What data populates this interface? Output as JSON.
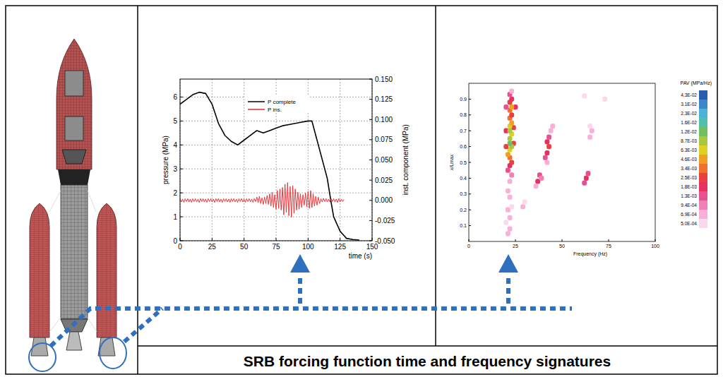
{
  "caption": "SRB forcing function time and frequency signatures",
  "chart_data": [
    {
      "type": "line",
      "xlabel": "time (s)",
      "ylabel": "pressure (MPa)",
      "y2label": "inst. component (MPa)",
      "xlim": [
        0,
        150
      ],
      "xticks": [
        0,
        25,
        50,
        75,
        100,
        125,
        150
      ],
      "ylim": [
        0,
        6.75
      ],
      "yticks": [
        0,
        1,
        2,
        3,
        4,
        5,
        6
      ],
      "y2lim": [
        -0.05,
        0.15
      ],
      "y2ticks": [
        {
          "value": -0.05,
          "label": "-0.050"
        },
        {
          "value": -0.025,
          "label": "-0.025"
        },
        {
          "value": 0,
          "label": "0.000"
        },
        {
          "value": 0.025,
          "label": "0.025"
        },
        {
          "value": 0.05,
          "label": "0.050"
        },
        {
          "value": 0.075,
          "label": "0.075"
        },
        {
          "value": 0.1,
          "label": "0.100"
        },
        {
          "value": 0.125,
          "label": "0.125"
        },
        {
          "value": 0.15,
          "label": "0.150"
        }
      ],
      "grid": true,
      "legend": "upper center",
      "series": [
        {
          "name": "P complete",
          "color": "#000000",
          "x": [
            0,
            5,
            10,
            15,
            20,
            25,
            30,
            35,
            40,
            45,
            50,
            55,
            60,
            65,
            70,
            75,
            80,
            85,
            90,
            95,
            100,
            103,
            105,
            110,
            115,
            118,
            120,
            125,
            130,
            135,
            140
          ],
          "values": [
            5.7,
            5.9,
            6.1,
            6.2,
            6.15,
            5.7,
            4.9,
            4.4,
            4.15,
            4.0,
            4.2,
            4.4,
            4.6,
            4.5,
            4.6,
            4.7,
            4.8,
            4.85,
            4.9,
            4.95,
            5.0,
            5.0,
            4.6,
            3.6,
            2.6,
            1.6,
            1.0,
            0.4,
            0.1,
            0.05,
            0.03
          ]
        },
        {
          "name": "P ins.",
          "color": "#e8262a",
          "axis": "y2",
          "x": [
            0,
            1,
            2,
            3,
            4,
            5,
            6,
            7,
            8,
            9,
            10,
            11,
            12,
            13,
            14,
            15,
            16,
            17,
            18,
            19,
            20,
            21,
            22,
            23,
            24,
            25,
            26,
            27,
            28,
            29,
            30,
            31,
            32,
            33,
            34,
            35,
            36,
            37,
            38,
            39,
            40,
            41,
            42,
            43,
            44,
            45,
            46,
            47,
            48,
            49,
            50,
            51,
            52,
            53,
            54,
            55,
            56,
            57,
            58,
            59,
            60,
            61,
            62,
            63,
            64,
            65,
            66,
            67,
            68,
            69,
            70,
            71,
            72,
            73,
            74,
            75,
            76,
            77,
            78,
            79,
            80,
            81,
            82,
            83,
            84,
            85,
            86,
            87,
            88,
            89,
            90,
            91,
            92,
            93,
            94,
            95,
            96,
            97,
            98,
            99,
            100,
            101,
            102,
            103,
            104,
            105,
            106,
            107,
            108,
            109,
            110,
            111,
            112,
            113,
            114,
            115,
            116,
            117,
            118,
            119,
            120,
            121,
            122,
            123,
            124,
            125,
            126,
            127,
            128
          ],
          "values": [
            0.002,
            -0.002,
            0.0015,
            -0.0025,
            0.002,
            -0.0015,
            0.002,
            -0.002,
            0.0015,
            -0.0025,
            0.002,
            -0.0015,
            0.002,
            -0.002,
            0.0015,
            -0.0025,
            0.002,
            -0.0015,
            0.002,
            -0.002,
            0.0015,
            -0.0025,
            0.002,
            -0.0015,
            0.002,
            -0.002,
            0.0015,
            -0.0025,
            0.002,
            -0.0015,
            0.002,
            -0.002,
            0.0015,
            -0.0025,
            0.002,
            -0.0015,
            0.002,
            -0.002,
            0.0015,
            -0.0025,
            0.002,
            -0.0015,
            0.002,
            -0.002,
            0.0015,
            -0.0025,
            0.002,
            -0.0015,
            0.002,
            -0.002,
            0.0015,
            -0.0025,
            0.002,
            -0.0015,
            0.002,
            -0.002,
            0.0015,
            -0.0025,
            0.002,
            -0.0015,
            0.004,
            -0.003,
            0.005,
            -0.004,
            0.003,
            -0.005,
            0.004,
            -0.004,
            0.006,
            -0.005,
            0.008,
            -0.007,
            0.01,
            -0.009,
            0.007,
            -0.011,
            0.012,
            -0.01,
            0.014,
            -0.012,
            0.016,
            -0.018,
            0.02,
            -0.015,
            0.022,
            -0.019,
            0.017,
            -0.021,
            0.018,
            -0.016,
            0.014,
            -0.012,
            0.01,
            -0.011,
            0.008,
            -0.009,
            0.007,
            -0.006,
            0.009,
            -0.008,
            0.011,
            -0.01,
            0.012,
            -0.009,
            0.008,
            -0.007,
            0.005,
            -0.006,
            0.004,
            -0.004,
            0.002,
            -0.002,
            0.0025,
            -0.0015,
            0.002,
            -0.002,
            0.0015,
            -0.002,
            0.002,
            -0.0015,
            0.002,
            -0.002,
            0.0015,
            -0.0025,
            0.002,
            -0.002,
            0.0015,
            -0.0015,
            0.001
          ]
        }
      ]
    },
    {
      "type": "heatmap",
      "xlabel": "Frequency (Hz)",
      "ylabel": "x/Lmax",
      "xlim": [
        0,
        100
      ],
      "xticks": [
        0,
        25,
        50,
        75,
        100
      ],
      "ylim": [
        0,
        1
      ],
      "yticks": [
        0.1,
        0.2,
        0.3,
        0.4,
        0.5,
        0.6,
        0.7,
        0.8,
        0.9
      ],
      "cells": [
        [
          21,
          0.05,
          0.0007
        ],
        [
          22,
          0.08,
          0.0009
        ],
        [
          20,
          0.12,
          0.0006
        ],
        [
          22,
          0.15,
          0.0008
        ],
        [
          21,
          0.2,
          0.0007
        ],
        [
          23,
          0.22,
          0.0006
        ],
        [
          22,
          0.28,
          0.0009
        ],
        [
          21,
          0.32,
          0.0007
        ],
        [
          22,
          0.38,
          0.0008
        ],
        [
          23,
          0.42,
          0.001
        ],
        [
          21,
          0.45,
          0.0013
        ],
        [
          22,
          0.48,
          0.0018
        ],
        [
          23,
          0.5,
          0.0025
        ],
        [
          22,
          0.53,
          0.0034
        ],
        [
          21,
          0.55,
          0.0046
        ],
        [
          22,
          0.58,
          0.0063
        ],
        [
          20,
          0.6,
          0.0025
        ],
        [
          24,
          0.62,
          0.0025
        ],
        [
          20,
          0.7,
          0.0018
        ],
        [
          24,
          0.72,
          0.0025
        ],
        [
          20,
          0.85,
          0.0013
        ],
        [
          25,
          0.85,
          0.0018
        ],
        [
          23,
          0.6,
          0.0087
        ],
        [
          22,
          0.62,
          0.012
        ],
        [
          22,
          0.65,
          0.0087
        ],
        [
          23,
          0.68,
          0.0063
        ],
        [
          22,
          0.7,
          0.0087
        ],
        [
          22,
          0.73,
          0.0063
        ],
        [
          23,
          0.75,
          0.0046
        ],
        [
          22,
          0.78,
          0.0034
        ],
        [
          23,
          0.8,
          0.0025
        ],
        [
          22,
          0.83,
          0.0034
        ],
        [
          23,
          0.85,
          0.0046
        ],
        [
          22,
          0.88,
          0.0025
        ],
        [
          23,
          0.9,
          0.0018
        ],
        [
          22,
          0.93,
          0.0013
        ],
        [
          23,
          0.95,
          0.0009
        ],
        [
          42,
          0.5,
          0.0009
        ],
        [
          41,
          0.53,
          0.0013
        ],
        [
          42,
          0.56,
          0.0018
        ],
        [
          43,
          0.6,
          0.0025
        ],
        [
          42,
          0.63,
          0.0018
        ],
        [
          43,
          0.66,
          0.0013
        ],
        [
          44,
          0.7,
          0.0009
        ],
        [
          45,
          0.73,
          0.0007
        ],
        [
          38,
          0.42,
          0.0013
        ],
        [
          37,
          0.38,
          0.0018
        ],
        [
          36,
          0.35,
          0.0009
        ],
        [
          39,
          0.4,
          0.001
        ],
        [
          29,
          0.22,
          0.0007
        ],
        [
          30,
          0.25,
          0.0006
        ],
        [
          62,
          0.37,
          0.0013
        ],
        [
          63,
          0.4,
          0.0018
        ],
        [
          64,
          0.43,
          0.0013
        ],
        [
          65,
          0.66,
          0.0007
        ],
        [
          66,
          0.7,
          0.0009
        ],
        [
          65,
          0.73,
          0.0006
        ],
        [
          62,
          0.92,
          0.0006
        ],
        [
          73,
          0.9,
          0.0006
        ]
      ],
      "colorbar": {
        "title": "PAV (MPa/Hz)",
        "ticks": [
          {
            "value": 0.043,
            "label": "4.3E-02"
          },
          {
            "value": 0.031,
            "label": "3.1E-02"
          },
          {
            "value": 0.023,
            "label": "2.3E-02"
          },
          {
            "value": 0.016,
            "label": "1.6E-02"
          },
          {
            "value": 0.012,
            "label": "1.2E-02"
          },
          {
            "value": 0.0087,
            "label": "8.7E-03"
          },
          {
            "value": 0.0063,
            "label": "6.3E-03"
          },
          {
            "value": 0.0046,
            "label": "4.6E-03"
          },
          {
            "value": 0.0034,
            "label": "3.4E-03"
          },
          {
            "value": 0.0025,
            "label": "2.5E-03"
          },
          {
            "value": 0.0018,
            "label": "1.8E-03"
          },
          {
            "value": 0.0013,
            "label": "1.3E-03"
          },
          {
            "value": 0.00094,
            "label": "9.4E-04"
          },
          {
            "value": 0.00069,
            "label": "6.9E-04"
          },
          {
            "value": 0.0005,
            "label": "5.0E-04"
          }
        ],
        "colors": [
          "#2a5db0",
          "#3f86c8",
          "#4fb0d8",
          "#50c0a8",
          "#70c060",
          "#a8c840",
          "#e0d020",
          "#f0a020",
          "#f07030",
          "#e84040",
          "#e83060",
          "#e85090",
          "#f080b8",
          "#f8b0d8",
          "#fcd8ec"
        ]
      }
    }
  ]
}
